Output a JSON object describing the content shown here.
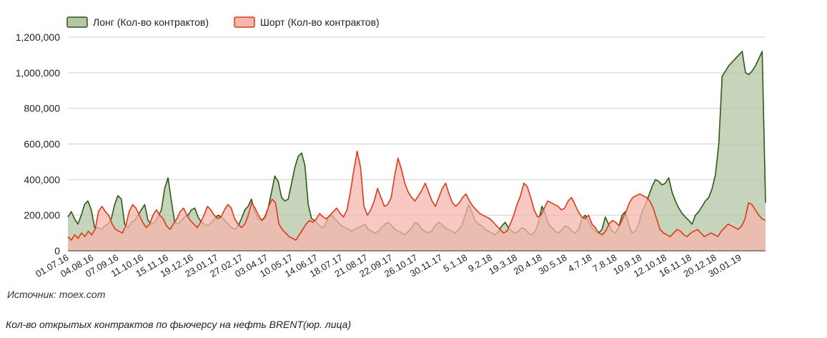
{
  "chart_data": {
    "type": "area",
    "series": [
      {
        "name": "Лонг (Кол-во контрактов)",
        "color": "#2d5a14",
        "fill": "#b3c6a6",
        "values": [
          190,
          220,
          180,
          150,
          200,
          260,
          280,
          230,
          130,
          130,
          120,
          140,
          150,
          180,
          260,
          310,
          290,
          150,
          130,
          160,
          170,
          200,
          230,
          260,
          170,
          150,
          160,
          190,
          230,
          350,
          410,
          280,
          160,
          150,
          170,
          190,
          200,
          230,
          240,
          190,
          160,
          150,
          140,
          160,
          180,
          200,
          190,
          170,
          150,
          130,
          120,
          140,
          180,
          230,
          250,
          290,
          220,
          180,
          170,
          190,
          240,
          330,
          420,
          390,
          300,
          280,
          290,
          380,
          470,
          530,
          550,
          480,
          260,
          180,
          170,
          150,
          130,
          140,
          190,
          200,
          180,
          160,
          140,
          130,
          120,
          110,
          120,
          130,
          140,
          150,
          120,
          110,
          100,
          110,
          130,
          150,
          160,
          140,
          120,
          110,
          100,
          90,
          110,
          130,
          160,
          150,
          120,
          110,
          100,
          110,
          140,
          160,
          150,
          130,
          120,
          110,
          100,
          120,
          140,
          200,
          260,
          220,
          170,
          150,
          140,
          120,
          110,
          100,
          90,
          110,
          140,
          160,
          130,
          110,
          100,
          110,
          130,
          120,
          100,
          90,
          110,
          160,
          250,
          210,
          150,
          130,
          110,
          100,
          120,
          140,
          130,
          110,
          100,
          120,
          180,
          200,
          160,
          130,
          110,
          100,
          120,
          190,
          150,
          110,
          100,
          130,
          200,
          220,
          150,
          100,
          110,
          150,
          220,
          260,
          310,
          360,
          400,
          390,
          370,
          380,
          410,
          330,
          280,
          240,
          210,
          190,
          170,
          150,
          200,
          220,
          250,
          280,
          300,
          350,
          430,
          600,
          980,
          1010,
          1040,
          1060,
          1080,
          1100,
          1120,
          1000,
          990,
          1010,
          1040,
          1080,
          1120,
          270
        ]
      },
      {
        "name": "Шорт (Кол-во контрактов)",
        "color": "#dd3a1a",
        "fill": "#f4b7ae",
        "values": [
          80,
          60,
          90,
          70,
          100,
          80,
          110,
          90,
          120,
          220,
          250,
          220,
          200,
          150,
          120,
          110,
          100,
          140,
          220,
          260,
          240,
          200,
          160,
          130,
          150,
          200,
          230,
          200,
          180,
          140,
          120,
          150,
          180,
          220,
          240,
          200,
          170,
          150,
          130,
          160,
          200,
          250,
          230,
          200,
          180,
          190,
          230,
          260,
          240,
          180,
          150,
          130,
          150,
          200,
          270,
          240,
          200,
          170,
          190,
          250,
          290,
          270,
          150,
          120,
          100,
          80,
          70,
          60,
          90,
          120,
          150,
          170,
          160,
          180,
          210,
          190,
          180,
          200,
          220,
          240,
          210,
          190,
          230,
          330,
          450,
          560,
          470,
          250,
          200,
          230,
          280,
          350,
          300,
          250,
          260,
          300,
          420,
          520,
          460,
          380,
          330,
          300,
          280,
          310,
          340,
          380,
          330,
          280,
          250,
          300,
          350,
          380,
          320,
          270,
          250,
          270,
          300,
          320,
          280,
          250,
          230,
          210,
          200,
          190,
          180,
          160,
          140,
          120,
          100,
          110,
          150,
          200,
          260,
          310,
          380,
          360,
          300,
          230,
          190,
          200,
          240,
          280,
          270,
          260,
          250,
          230,
          240,
          280,
          300,
          260,
          220,
          190,
          180,
          200,
          150,
          130,
          100,
          90,
          110,
          150,
          170,
          160,
          140,
          180,
          220,
          270,
          300,
          310,
          320,
          310,
          300,
          280,
          240,
          180,
          120,
          100,
          90,
          80,
          100,
          120,
          110,
          90,
          80,
          100,
          110,
          120,
          100,
          80,
          90,
          100,
          90,
          80,
          110,
          130,
          150,
          140,
          130,
          120,
          140,
          180,
          270,
          260,
          230,
          200,
          180,
          170
        ]
      }
    ],
    "x_tick_labels": [
      "01.07.16",
      "04.08.16",
      "07.09.16",
      "11.10.16",
      "15.11.16",
      "19.12.16",
      "23.01.17",
      "27.02.17",
      "03.04.17",
      "10.05.17",
      "14.06.17",
      "18.07.17",
      "21.08.17",
      "22.09.17",
      "26.10.17",
      "30.11.17",
      "5.1.18",
      "9.2.18",
      "19.3.18",
      "20.4.18",
      "30.5.18",
      "4.7.18",
      "7.8.18",
      "10.9.18",
      "12.10.18",
      "16.11.18",
      "20.12.18",
      "30.01.19"
    ],
    "y_tick_labels": [
      "0",
      "200,000",
      "400,000",
      "600,000",
      "800,000",
      "1,000,000",
      "1,200,000"
    ],
    "y_ticks": [
      0,
      200000,
      400000,
      600000,
      800000,
      1000000,
      1200000
    ],
    "value_unit_multiplier": 1000,
    "ylim": [
      0,
      1200000
    ],
    "grid": true,
    "legend_placement": "top-left",
    "source": "Источник: moex.com",
    "caption": "Кол-во открытых контрактов по фьючерсу на нефть BRENT(юр. лица)"
  }
}
